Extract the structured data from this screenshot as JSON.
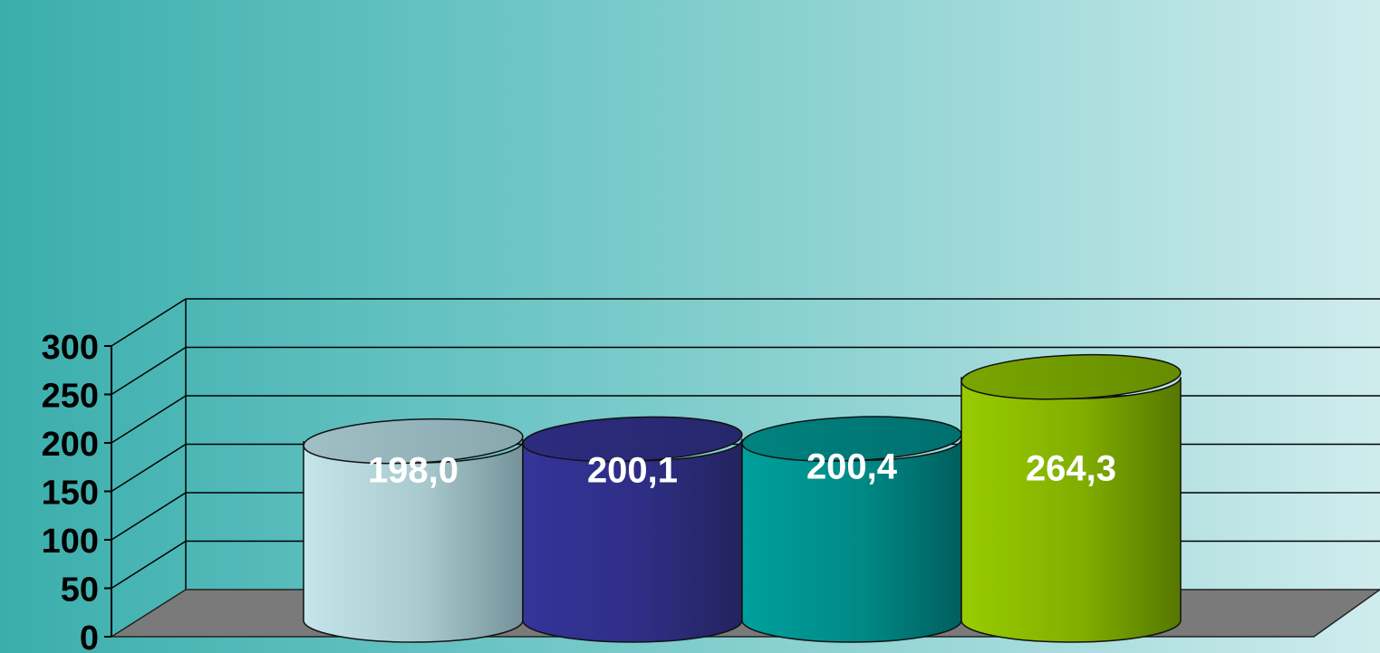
{
  "chart_data": {
    "type": "bar",
    "style": "3d-cylinder",
    "title": "",
    "xlabel": "",
    "ylabel": "",
    "ylim": [
      0,
      300
    ],
    "yticks": [
      0,
      50,
      100,
      150,
      200,
      250,
      300
    ],
    "grid": true,
    "legend": "none",
    "values": [
      198.0,
      200.1,
      200.4,
      264.3
    ],
    "data_labels": [
      "198,0",
      "200,1",
      "200,4",
      "264,3"
    ],
    "colors": [
      {
        "light": "#c4e6ea",
        "dark": "#74929a"
      },
      {
        "light": "#34349a",
        "dark": "#23235e"
      },
      {
        "light": "#00a09c",
        "dark": "#005f5e"
      },
      {
        "light": "#99cc00",
        "dark": "#557700"
      }
    ],
    "floor_color": "#7a7a7a",
    "background_colors": [
      "#3aaeac",
      "#cfeced"
    ]
  }
}
